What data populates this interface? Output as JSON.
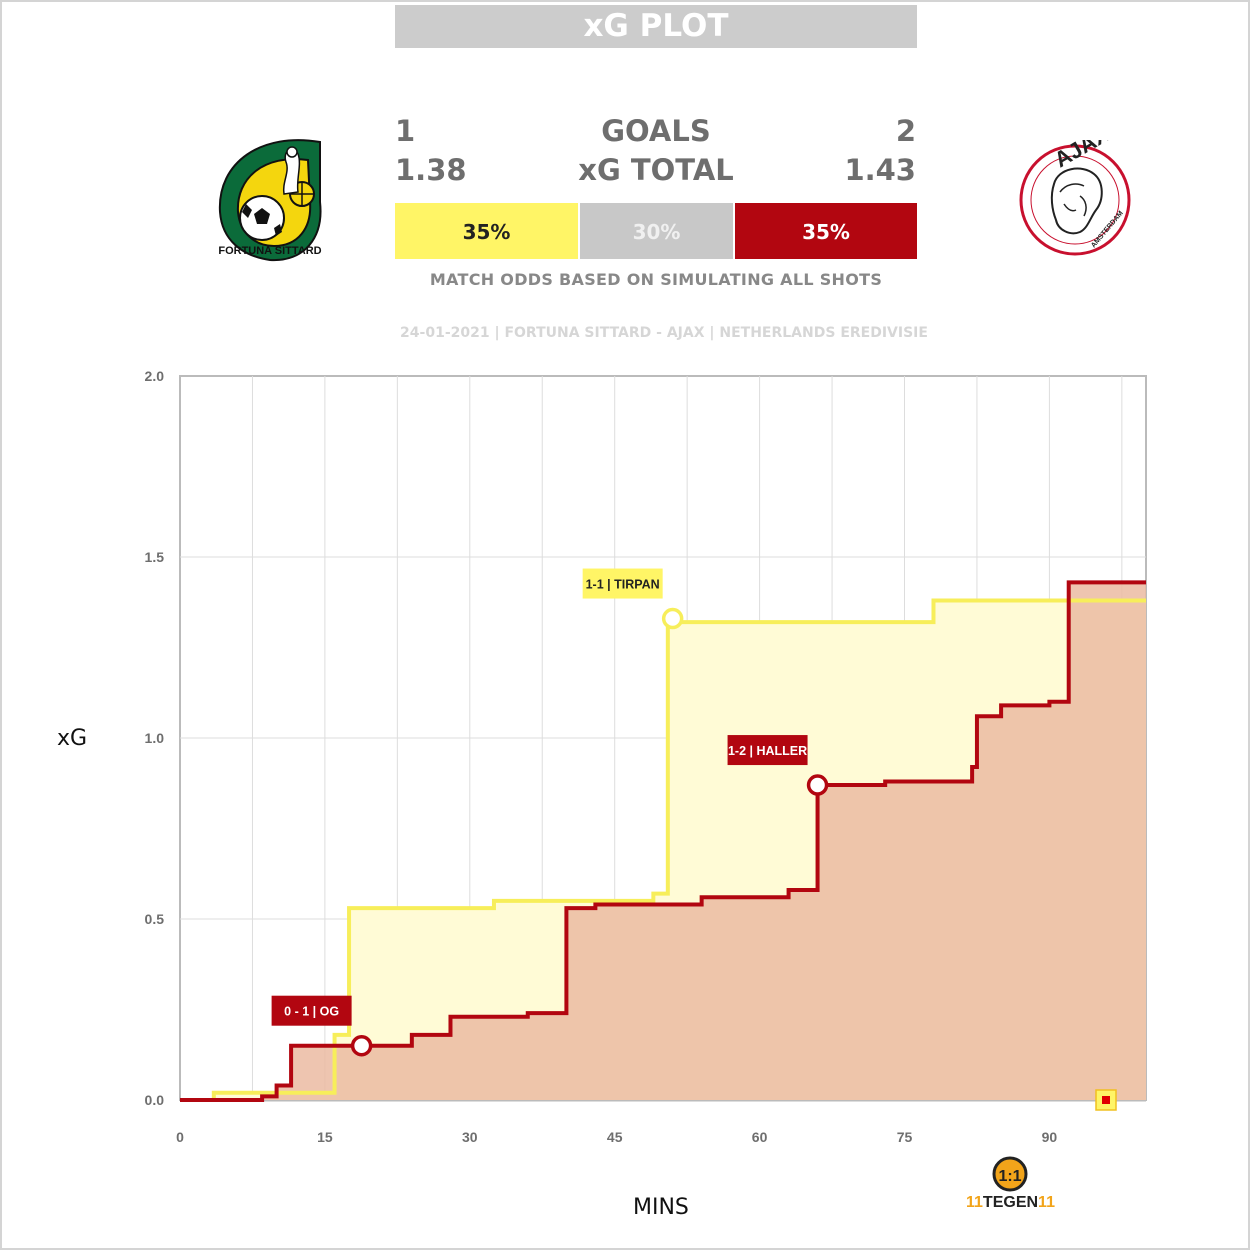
{
  "header": {
    "title": "xG PLOT"
  },
  "scoreboard": {
    "home_goals": "1",
    "away_goals": "2",
    "goals_label": "GOALS",
    "home_xg": "1.38",
    "away_xg": "1.43",
    "xg_label": "xG TOTAL"
  },
  "odds": {
    "home": "35%",
    "draw": "30%",
    "away": "35%",
    "note": "MATCH ODDS BASED ON SIMULATING ALL SHOTS"
  },
  "match_info": "24-01-2021 | FORTUNA SITTARD - AJAX | NETHERLANDS EREDIVISIE",
  "logos": {
    "home_text": "FORTUNA SITTARD",
    "away_text": "AJAX",
    "away_subtext": "AMSTERDAM",
    "brand_left": "11",
    "brand_mid": "TEGEN",
    "brand_right": "11",
    "brand_badge": "1:1"
  },
  "colors": {
    "home": "#fff566",
    "home_line": "#f7ee5a",
    "home_fill": "#fffbd6",
    "away": "#b20610",
    "away_fill": "#ebbba2",
    "overlap_line": "#f0b440",
    "draw": "#c8c8c8"
  },
  "chart_data": {
    "type": "line",
    "xlabel": "MINS",
    "ylabel": "xG",
    "xlim": [
      0,
      100
    ],
    "ylim": [
      0,
      2.0
    ],
    "xticks": [
      "0",
      "15",
      "30",
      "45",
      "60",
      "75",
      "90"
    ],
    "yticks": [
      "0.0",
      "0.5",
      "1.0",
      "1.5",
      "2.0"
    ],
    "grid": true,
    "series": [
      {
        "team": "home",
        "points": [
          [
            0,
            0
          ],
          [
            3.5,
            0.02
          ],
          [
            16,
            0.18
          ],
          [
            17.5,
            0.53
          ],
          [
            30,
            0.53
          ],
          [
            32.5,
            0.55
          ],
          [
            49,
            0.57
          ],
          [
            50.5,
            1.32
          ],
          [
            78,
            1.38
          ],
          [
            100,
            1.38
          ]
        ]
      },
      {
        "team": "away",
        "points": [
          [
            0,
            0
          ],
          [
            8.5,
            0.01
          ],
          [
            10,
            0.04
          ],
          [
            11.5,
            0.15
          ],
          [
            24,
            0.18
          ],
          [
            28,
            0.23
          ],
          [
            36,
            0.24
          ],
          [
            40,
            0.53
          ],
          [
            43,
            0.54
          ],
          [
            54,
            0.56
          ],
          [
            63,
            0.58
          ],
          [
            66,
            0.87
          ],
          [
            73,
            0.88
          ],
          [
            82,
            0.92
          ],
          [
            82.5,
            1.06
          ],
          [
            85,
            1.09
          ],
          [
            90,
            1.1
          ],
          [
            92,
            1.43
          ],
          [
            100,
            1.43
          ]
        ]
      }
    ],
    "annotations": [
      {
        "label": "0 - 1  |  OG",
        "team": "away",
        "x": 18.8,
        "y": 0.15
      },
      {
        "label": "1-1 | TIRPAN",
        "team": "home",
        "x": 51,
        "y": 1.33
      },
      {
        "label": "1-2 | HALLER",
        "team": "away",
        "x": 66,
        "y": 0.87
      }
    ]
  }
}
